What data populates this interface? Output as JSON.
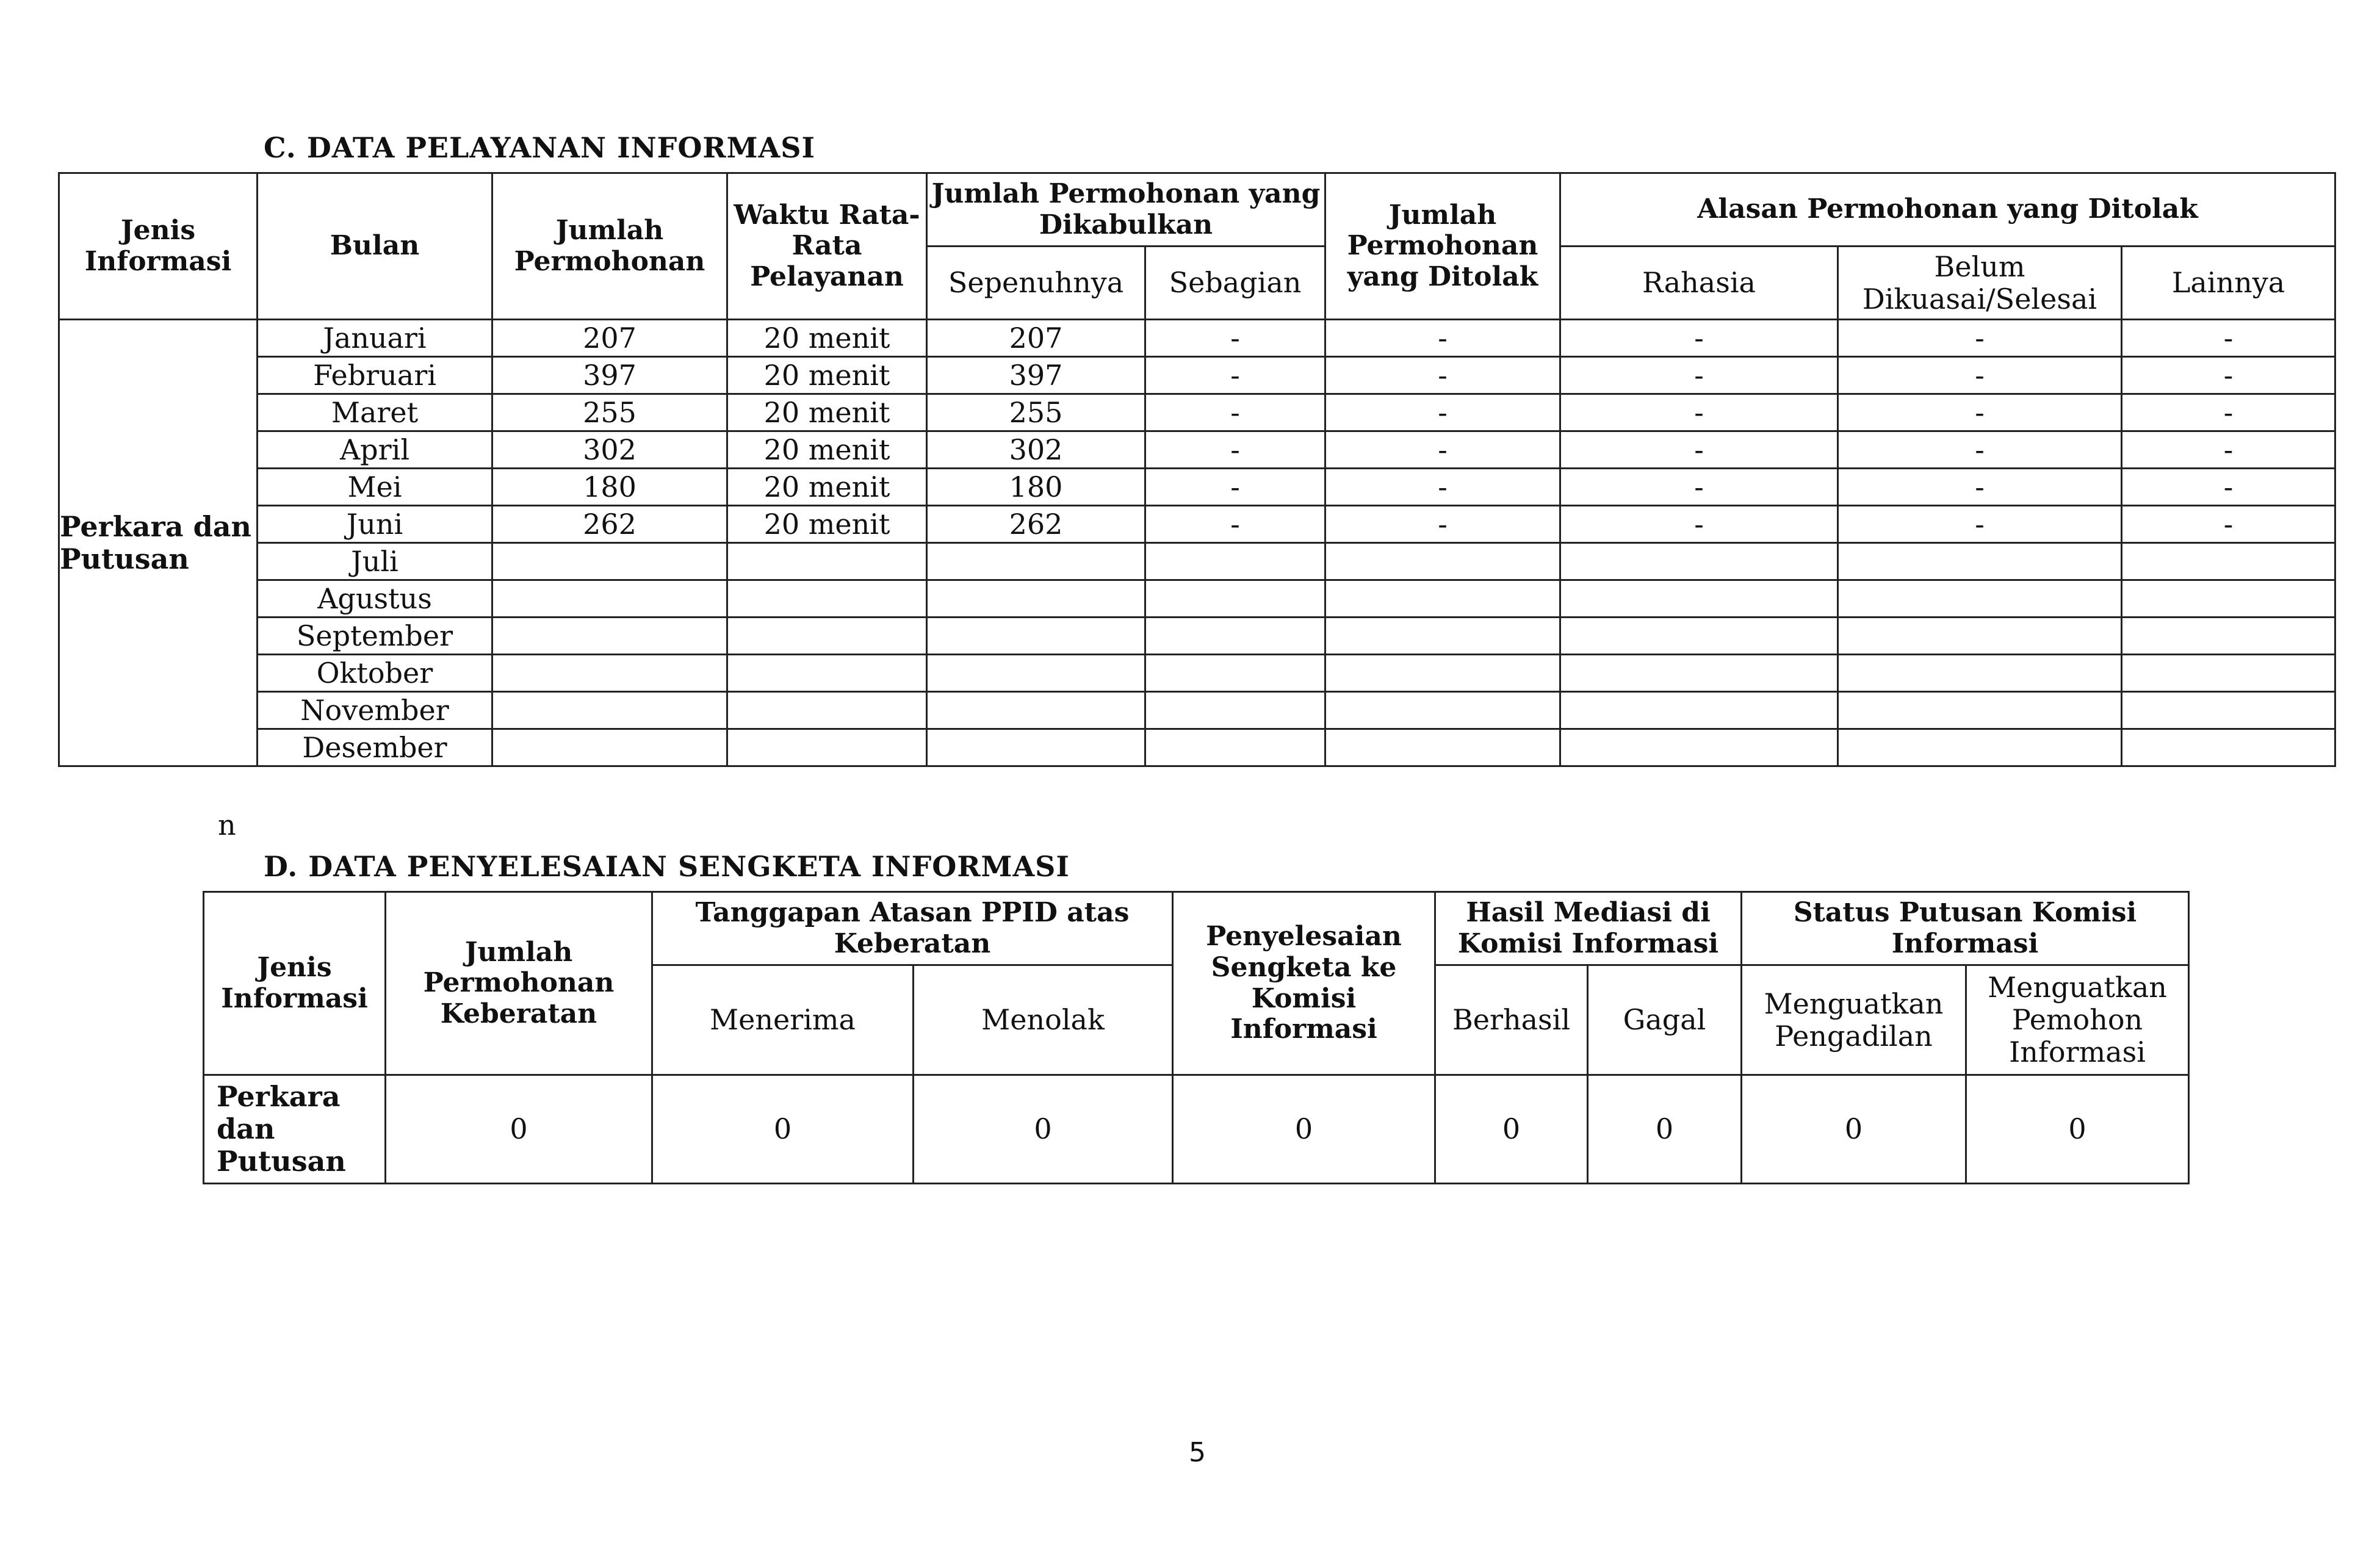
{
  "section_c": {
    "title": "C. DATA PELAYANAN INFORMASI",
    "headers": {
      "jenis": "Jenis Informasi",
      "bulan": "Bulan",
      "jumlah": "Jumlah Permohonan",
      "waktu": "Waktu Rata-Rata Pelayanan",
      "dikabulkan": "Jumlah Permohonan yang Dikabulkan",
      "sepenuhnya": "Sepenuhnya",
      "sebagian": "Sebagian",
      "ditolak": "Jumlah Permohonan yang Ditolak",
      "alasan": "Alasan Permohonan yang Ditolak",
      "rahasia": "Rahasia",
      "belum": "Belum Dikuasai/Selesai",
      "lainnya": "Lainnya"
    },
    "jenis_value": "Perkara dan Putusan",
    "rows": [
      {
        "bulan": "Januari",
        "jumlah": "207",
        "waktu": "20 menit",
        "sepenuhnya": "207",
        "sebagian": "-",
        "ditolak": "-",
        "rahasia": "-",
        "belum": "-",
        "lainnya": "-"
      },
      {
        "bulan": "Februari",
        "jumlah": "397",
        "waktu": "20 menit",
        "sepenuhnya": "397",
        "sebagian": "-",
        "ditolak": "-",
        "rahasia": "-",
        "belum": "-",
        "lainnya": "-"
      },
      {
        "bulan": "Maret",
        "jumlah": "255",
        "waktu": "20 menit",
        "sepenuhnya": "255",
        "sebagian": "-",
        "ditolak": "-",
        "rahasia": "-",
        "belum": "-",
        "lainnya": "-"
      },
      {
        "bulan": "April",
        "jumlah": "302",
        "waktu": "20 menit",
        "sepenuhnya": "302",
        "sebagian": "-",
        "ditolak": "-",
        "rahasia": "-",
        "belum": "-",
        "lainnya": "-"
      },
      {
        "bulan": "Mei",
        "jumlah": "180",
        "waktu": "20 menit",
        "sepenuhnya": "180",
        "sebagian": "-",
        "ditolak": "-",
        "rahasia": "-",
        "belum": "-",
        "lainnya": "-"
      },
      {
        "bulan": "Juni",
        "jumlah": "262",
        "waktu": "20 menit",
        "sepenuhnya": "262",
        "sebagian": "-",
        "ditolak": "-",
        "rahasia": "-",
        "belum": "-",
        "lainnya": "-"
      },
      {
        "bulan": "Juli"
      },
      {
        "bulan": "Agustus"
      },
      {
        "bulan": "September"
      },
      {
        "bulan": "Oktober"
      },
      {
        "bulan": "November"
      },
      {
        "bulan": "Desember"
      }
    ]
  },
  "stray_text": "n",
  "section_d": {
    "title": "D. DATA PENYELESAIAN SENGKETA INFORMASI",
    "headers": {
      "jenis": "Jenis Informasi",
      "jumlah": "Jumlah Permohonan Keberatan",
      "tanggapan": "Tanggapan Atasan PPID atas Keberatan",
      "menerima": "Menerima",
      "menolak": "Menolak",
      "penyelesaian": "Penyelesaian Sengketa ke Komisi Informasi",
      "mediasi": "Hasil Mediasi di Komisi Informasi",
      "berhasil": "Berhasil",
      "gagal": "Gagal",
      "status": "Status Putusan Komisi Informasi",
      "pengadilan": "Menguatkan Pengadilan",
      "pemohon": "Menguatkan Pemohon Informasi"
    },
    "row": {
      "jenis": "Perkara dan Putusan",
      "values": [
        "0",
        "0",
        "0",
        "0",
        "0",
        "0",
        "0",
        "0"
      ]
    }
  },
  "page_number": "5"
}
